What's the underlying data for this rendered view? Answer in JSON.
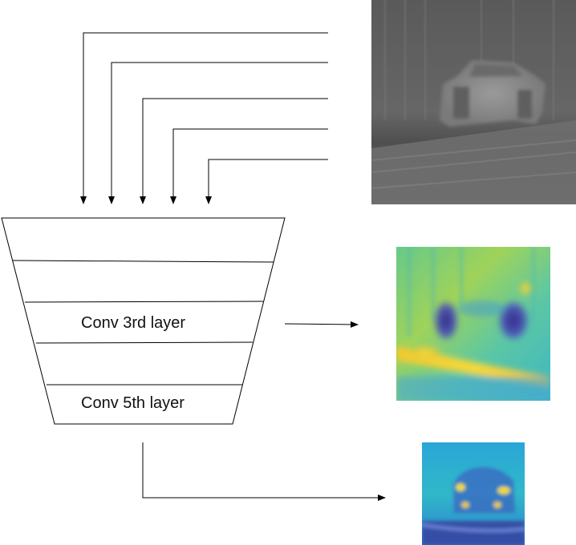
{
  "diagram": {
    "layers": [
      {
        "name": "layer-1",
        "label": ""
      },
      {
        "name": "layer-2",
        "label": ""
      },
      {
        "name": "layer-3",
        "label": "Conv 3rd layer"
      },
      {
        "name": "layer-4",
        "label": ""
      },
      {
        "name": "layer-5",
        "label": "Conv 5th layer"
      }
    ],
    "input_image": "thermal infrared photo of a pickup truck",
    "outputs": [
      {
        "source": "Conv 3rd layer",
        "kind": "feature heatmap"
      },
      {
        "source": "Conv 5th layer",
        "kind": "feature heatmap"
      }
    ],
    "colors": {
      "line": "#000000",
      "heat_low": "#3b2f8f",
      "heat_mid": "#2bb3c0",
      "heat_high": "#f4d43a"
    }
  }
}
